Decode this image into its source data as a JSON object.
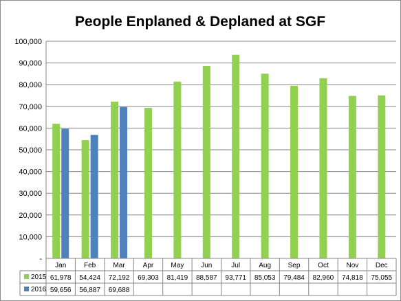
{
  "chart_data": {
    "type": "bar",
    "title": "People Enplaned & Deplaned at SGF",
    "xlabel": "",
    "ylabel": "",
    "ylim": [
      0,
      100000
    ],
    "yticks": [
      "-",
      "10,000",
      "20,000",
      "30,000",
      "40,000",
      "50,000",
      "60,000",
      "70,000",
      "80,000",
      "90,000",
      "100,000"
    ],
    "grid": true,
    "legend": "data-table",
    "categories": [
      "Jan",
      "Feb",
      "Mar",
      "Apr",
      "May",
      "Jun",
      "Jul",
      "Aug",
      "Sep",
      "Oct",
      "Nov",
      "Dec"
    ],
    "series": [
      {
        "name": "2015",
        "color": "#92d050",
        "values": [
          61978,
          54424,
          72192,
          69303,
          81419,
          88587,
          93771,
          85053,
          79484,
          82960,
          74818,
          75055
        ],
        "labels": [
          "61,978",
          "54,424",
          "72,192",
          "69,303",
          "81,419",
          "88,587",
          "93,771",
          "85,053",
          "79,484",
          "82,960",
          "74,818",
          "75,055"
        ]
      },
      {
        "name": "2016",
        "color": "#4f81bd",
        "values": [
          59656,
          56887,
          69688,
          null,
          null,
          null,
          null,
          null,
          null,
          null,
          null,
          null
        ],
        "labels": [
          "59,656",
          "56,887",
          "69,688",
          "",
          "",
          "",
          "",
          "",
          "",
          "",
          "",
          ""
        ]
      }
    ]
  }
}
